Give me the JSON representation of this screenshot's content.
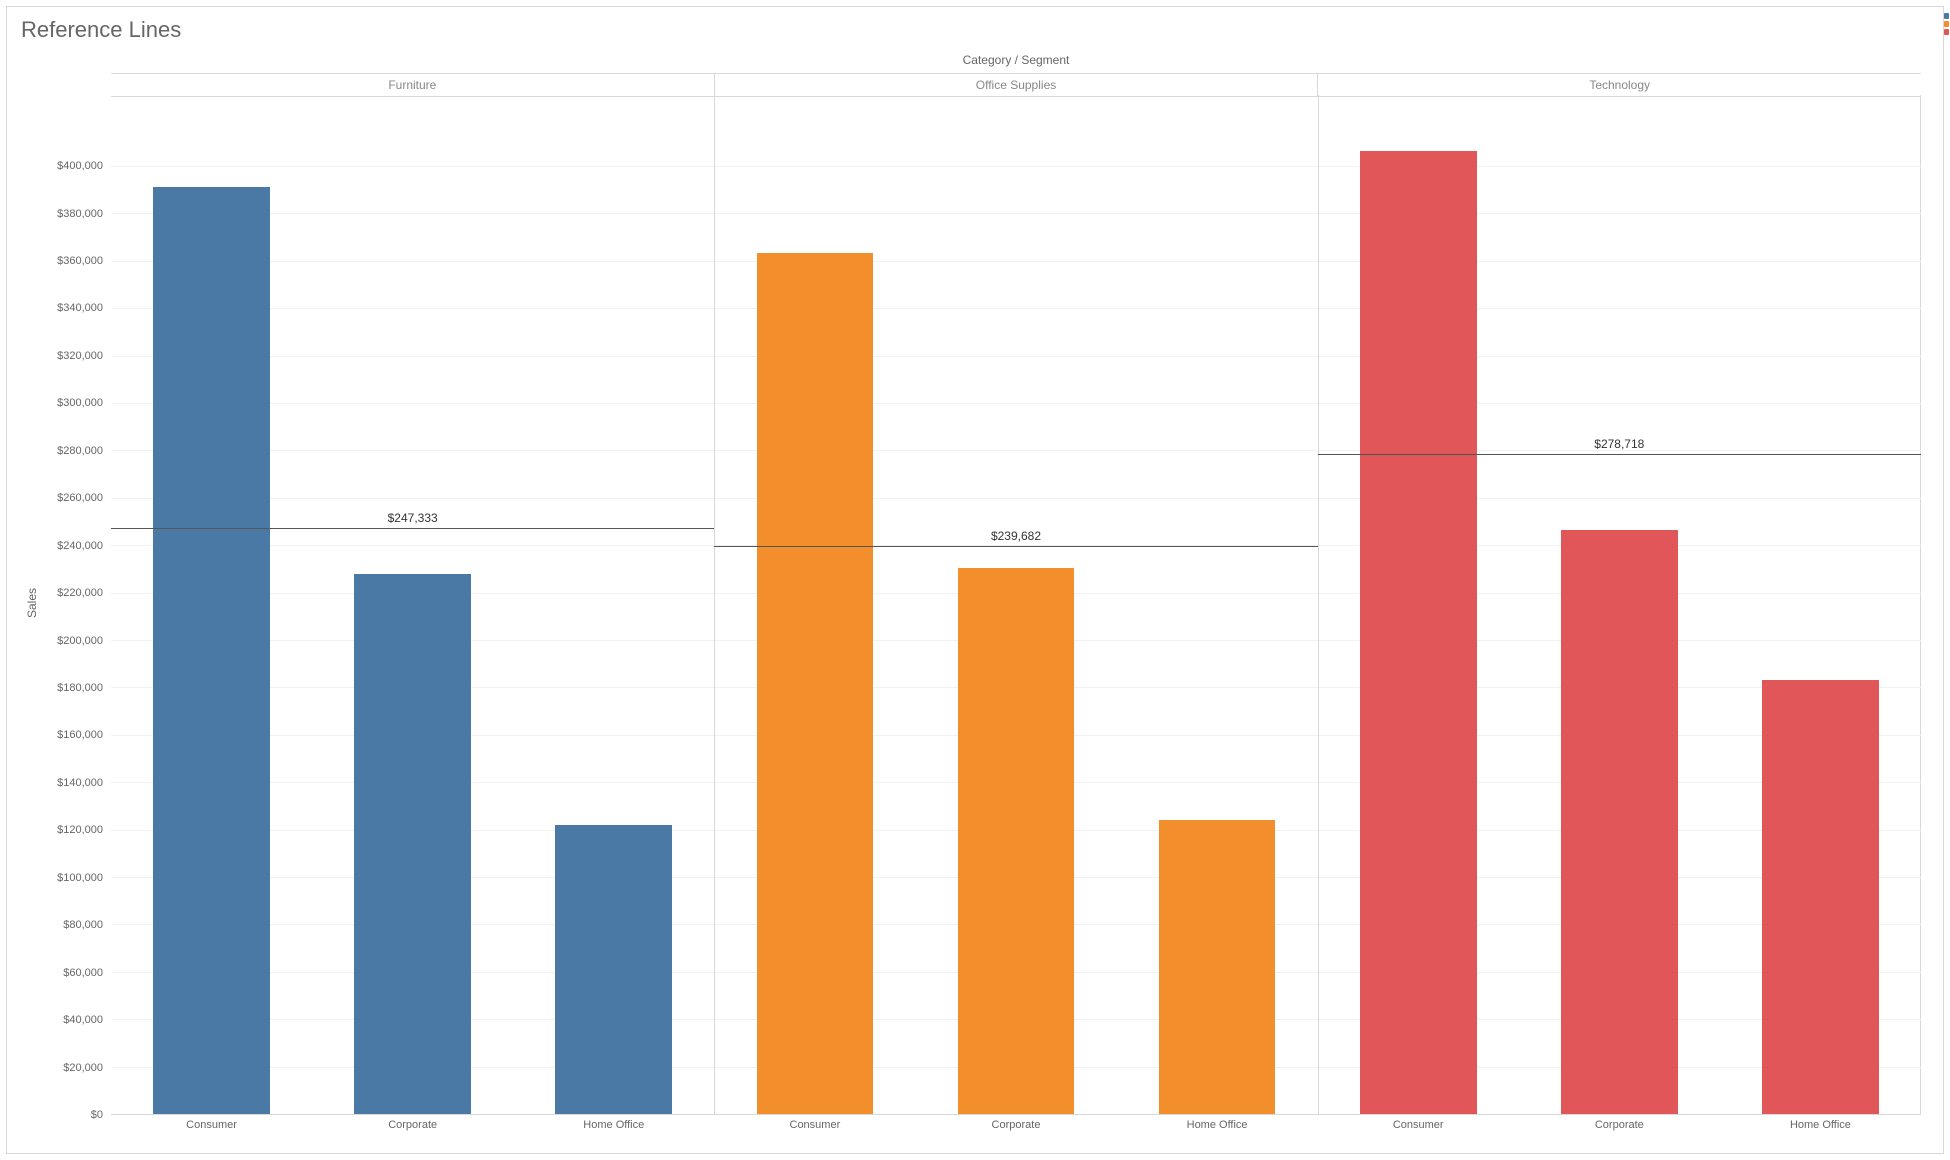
{
  "title": "Reference Lines",
  "chart": {
    "type": "bar",
    "top_axis_title": "Category / Segment",
    "y_axis_title": "Sales",
    "y_max": 430000,
    "y_tick_step": 20000,
    "y_tick_prefix": "$",
    "y_tick_thousands_sep": ",",
    "title_fontsize": 22,
    "axis_label_fontsize": 12,
    "tick_fontsize": 11,
    "background_color": "#ffffff",
    "grid_color": "#f1f1f1",
    "border_color": "#d8d8d8",
    "refline_color": "#555555",
    "text_color": "#666666",
    "bar_width_ratio": 0.58,
    "segments": [
      "Consumer",
      "Corporate",
      "Home Office"
    ],
    "panels": [
      {
        "category": "Furniture",
        "color": "#4a79a6",
        "reference": {
          "value": 247333,
          "label": "$247,333"
        },
        "values": [
          391000,
          228000,
          122000
        ]
      },
      {
        "category": "Office Supplies",
        "color": "#f28e2b",
        "reference": {
          "value": 239682,
          "label": "$239,682"
        },
        "values": [
          363500,
          230500,
          124000
        ]
      },
      {
        "category": "Technology",
        "color": "#e15759",
        "reference": {
          "value": 278718,
          "label": "$278,718"
        },
        "values": [
          406500,
          246500,
          183000
        ]
      }
    ]
  },
  "side_marks": [
    "#4a79a6",
    "#f28e2b",
    "#e15759"
  ]
}
